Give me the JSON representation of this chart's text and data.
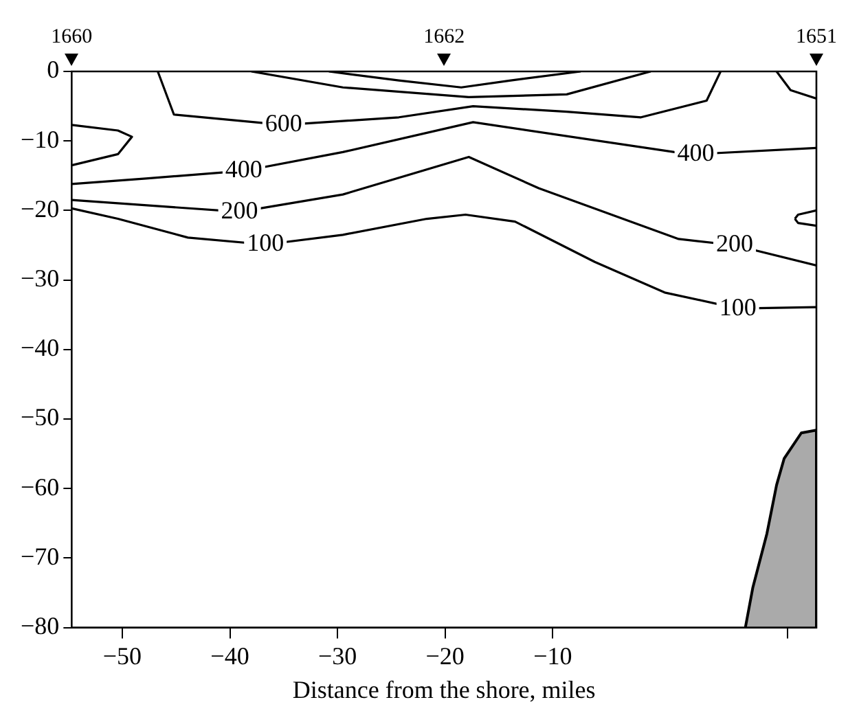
{
  "chart_data": {
    "type": "line",
    "xlabel": "Distance from the shore, miles",
    "xlim": [
      -54.7,
      14.5
    ],
    "xticks": [
      -50,
      -40,
      -30,
      -20,
      -10,
      {
        "value": 11.8,
        "label": null
      }
    ],
    "ylim": [
      -80,
      0
    ],
    "yticks": [
      0,
      -10,
      -20,
      -30,
      -40,
      -50,
      -60,
      -70,
      -80
    ],
    "grid": false,
    "legend": false,
    "marker": "none",
    "line_style": "solid",
    "series": [
      {
        "color": "#000000",
        "x": [
          -54.7,
          -50.4,
          -43.9,
          -36.7,
          -29.5,
          -21.7,
          -18.1,
          -13.5,
          -6.1,
          0.4,
          7.2,
          14.5
        ],
        "values": [
          -19.7,
          -21.2,
          -23.9,
          -24.9,
          -23.5,
          -21.2,
          -20.6,
          -21.6,
          -27.4,
          -31.8,
          -34.1,
          -33.9
        ]
      },
      {
        "color": "#000000",
        "x": [
          -54.7,
          -39.1,
          -29.5,
          -17.8,
          -11.3,
          1.7,
          6.9,
          14.5
        ],
        "values": [
          -18.5,
          -20.2,
          -17.7,
          -12.3,
          -16.8,
          -24.1,
          -25.0,
          -27.9
        ]
      },
      {
        "color": "#000000",
        "x": [
          -54.7,
          -47.8,
          -38.7,
          -29.5,
          -17.4,
          1.3,
          3.3,
          14.5
        ],
        "values": [
          -16.2,
          -15.4,
          -14.3,
          -11.6,
          -7.3,
          -11.6,
          -11.9,
          -11.0
        ]
      },
      {
        "color": "#000000",
        "x": [
          -46.7,
          -45.2,
          -35.0,
          -24.3,
          -17.4,
          -8.7,
          -1.8,
          4.3,
          5.6
        ],
        "values": [
          0,
          -6.2,
          -7.7,
          -6.6,
          -5.0,
          -5.8,
          -6.6,
          -4.2,
          0
        ]
      },
      {
        "color": "#000000",
        "x": [
          -38.0,
          -29.5,
          -17.8,
          -8.7,
          -0.9
        ],
        "values": [
          0,
          -2.3,
          -3.7,
          -3.3,
          0
        ]
      },
      {
        "color": "#000000",
        "x": [
          -30.8,
          -24.3,
          -18.5,
          -13.9,
          -7.4
        ],
        "values": [
          0,
          -1.3,
          -2.3,
          -1.3,
          0
        ]
      },
      {
        "color": "#000000",
        "x": [
          -54.7,
          -50.4,
          -49.1,
          -50.4,
          -54.7
        ],
        "values": [
          -7.7,
          -8.5,
          -9.4,
          -11.9,
          -13.5
        ]
      },
      {
        "color": "#000000",
        "x": [
          12.5,
          12.8,
          14.5
        ],
        "values": [
          -21.2,
          -20.6,
          -20.0
        ]
      },
      {
        "color": "#000000",
        "x": [
          12.5,
          12.8,
          14.5
        ],
        "values": [
          -21.2,
          -21.8,
          -22.2
        ]
      },
      {
        "color": "#000000",
        "x": [
          10.8,
          12.1,
          14.5
        ],
        "values": [
          0,
          -2.7,
          -3.9
        ]
      },
      {
        "type": "area",
        "color": "#000000",
        "x": [
          7.9,
          8.6,
          9.9,
          10.8,
          11.5,
          13.1,
          14.5,
          14.5
        ],
        "values": [
          -80,
          -74.2,
          -66.5,
          -59.5,
          -55.7,
          -52.0,
          -51.6,
          -80
        ]
      }
    ],
    "annotations": [
      "1660",
      "1662",
      "1651",
      {
        "text": "600",
        "x": -35.0,
        "y": -7.7
      },
      {
        "text": "400",
        "x": -38.7,
        "y": -14.3
      },
      {
        "text": "400",
        "x": 3.3,
        "y": -11.9
      },
      {
        "text": "200",
        "x": -39.1,
        "y": -20.2
      },
      {
        "text": "200",
        "x": 6.9,
        "y": -25.0
      },
      {
        "text": "100",
        "x": -36.7,
        "y": -24.9
      },
      {
        "text": "100",
        "x": 7.2,
        "y": -34.1
      }
    ]
  }
}
